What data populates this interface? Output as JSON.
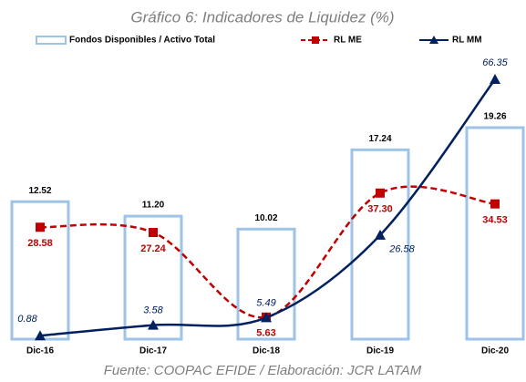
{
  "chart_data": {
    "type": "combo",
    "title": "Gráfico 6: Indicadores de Liquidez (%)",
    "source": "Fuente: COOPAC EFIDE / Elaboración: JCR LATAM",
    "categories": [
      "Dic-16",
      "Dic-17",
      "Dic-18",
      "Dic-19",
      "Dic-20"
    ],
    "series": [
      {
        "name": "Fondos Disponibles / Activo Total",
        "type": "bar",
        "color": "#9dc3e6",
        "values": [
          12.52,
          11.2,
          10.02,
          17.24,
          19.26
        ],
        "value_labels": [
          "12.52",
          "11.20",
          "10.02",
          "17.24",
          "19.26"
        ]
      },
      {
        "name": "RL ME",
        "type": "line",
        "color": "#c00000",
        "dashed": true,
        "marker": "square",
        "values": [
          28.58,
          27.24,
          5.63,
          37.3,
          34.53
        ],
        "value_labels": [
          "28.58",
          "27.24",
          "5.63",
          "37.30",
          "34.53"
        ]
      },
      {
        "name": "RL MM",
        "type": "line",
        "color": "#002060",
        "dashed": false,
        "marker": "triangle",
        "values": [
          0.88,
          3.58,
          5.49,
          26.58,
          66.35
        ],
        "value_labels": [
          "0.88",
          "3.58",
          "5.49",
          "26.58",
          "66.35"
        ]
      }
    ]
  }
}
